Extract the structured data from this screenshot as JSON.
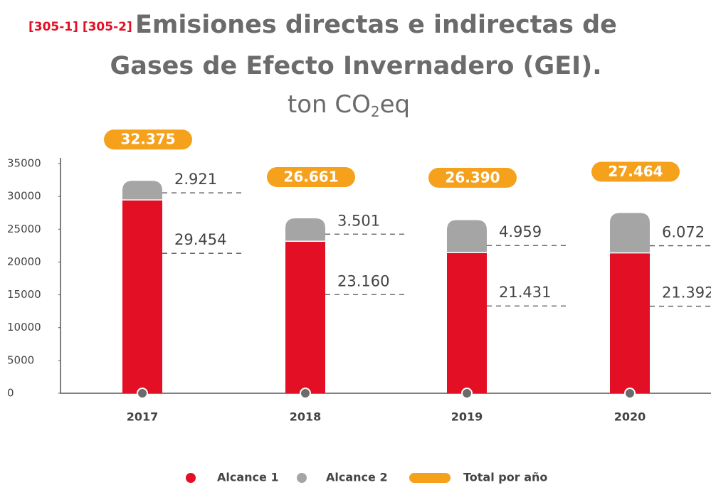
{
  "chart_data": {
    "type": "stacked_bar",
    "title_prefix": "[305-1] [305-2]",
    "title": [
      "Emisiones directas e indirectas de",
      "Gases de Efecto Invernadero (GEI)."
    ],
    "subtitle": [
      "ton CO",
      "2",
      "eq"
    ],
    "categories": [
      "2017",
      "2018",
      "2019",
      "2020"
    ],
    "series": [
      {
        "name": "Alcance 1",
        "color": "#e30f24",
        "values": [
          29454,
          23160,
          21431,
          21392
        ],
        "value_labels": [
          "29.454",
          "23.160",
          "21.431",
          "21.392"
        ]
      },
      {
        "name": "Alcance 2",
        "color": "#a5a5a5",
        "values": [
          2921,
          3501,
          4959,
          6072
        ],
        "value_labels": [
          "2.921",
          "3.501",
          "4.959",
          "6.072"
        ]
      }
    ],
    "totals": {
      "name": "Total por año",
      "color": "#f5a11c",
      "values": [
        32375,
        26661,
        26390,
        27464
      ],
      "value_labels": [
        "32.375",
        "26.661",
        "26.390",
        "27.464"
      ]
    },
    "ylim": [
      0,
      35000
    ],
    "yticks": [
      0,
      5000,
      10000,
      15000,
      20000,
      25000,
      30000,
      35000
    ]
  }
}
